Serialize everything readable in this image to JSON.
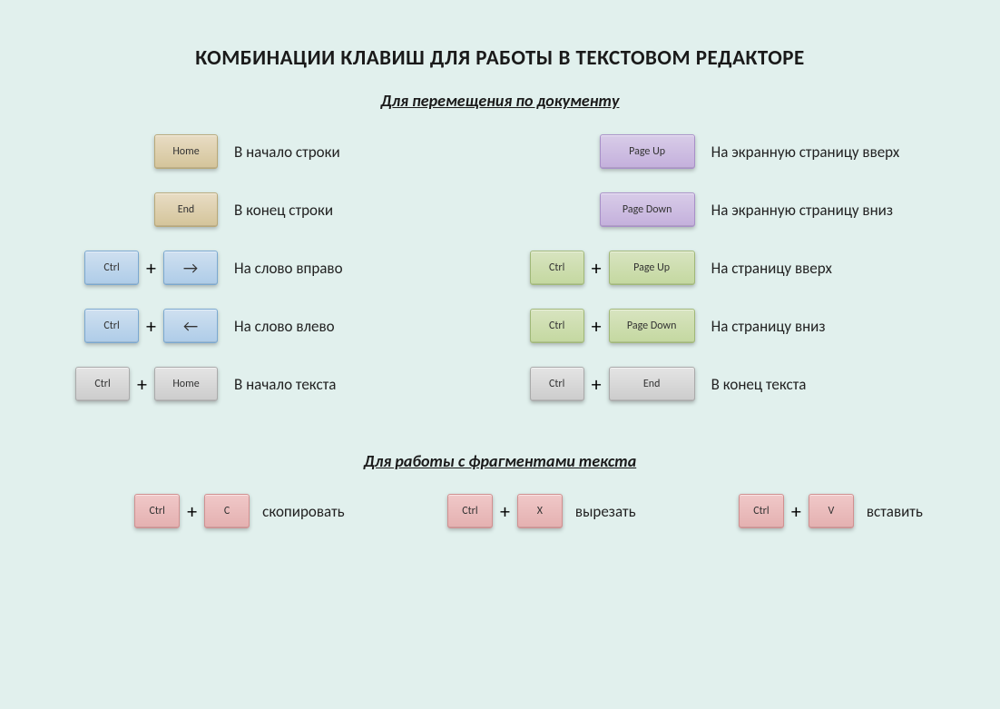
{
  "title": "КОМБИНАЦИИ КЛАВИШ ДЛЯ РАБОТЫ В ТЕКСТОВОМ РЕДАКТОРЕ",
  "section1": {
    "subtitle": "Для перемещения по документу",
    "left": [
      {
        "keys": [
          {
            "label": "Home",
            "cls": "k-tan w-normal"
          }
        ],
        "desc": "В начало строки"
      },
      {
        "keys": [
          {
            "label": "End",
            "cls": "k-tan w-normal"
          }
        ],
        "desc": "В конец строки"
      },
      {
        "keys": [
          {
            "label": "Ctrl",
            "cls": "k-blue w-med"
          },
          {
            "label": "→",
            "cls": "k-blue w-med arrow"
          }
        ],
        "desc": "На слово вправо"
      },
      {
        "keys": [
          {
            "label": "Ctrl",
            "cls": "k-blue w-med"
          },
          {
            "label": "←",
            "cls": "k-blue w-med arrow"
          }
        ],
        "desc": "На слово влево"
      },
      {
        "keys": [
          {
            "label": "Ctrl",
            "cls": "k-gray w-med"
          },
          {
            "label": "Home",
            "cls": "k-gray w-normal"
          }
        ],
        "desc": "В начало текста"
      }
    ],
    "right": [
      {
        "keys": [
          {
            "label": "Page Up",
            "cls": "k-purple w-xwide"
          }
        ],
        "desc": "На экранную страницу вверх"
      },
      {
        "keys": [
          {
            "label": "Page Down",
            "cls": "k-purple w-xwide"
          }
        ],
        "desc": "На экранную страницу вниз"
      },
      {
        "keys": [
          {
            "label": "Ctrl",
            "cls": "k-green w-med"
          },
          {
            "label": "Page Up",
            "cls": "k-green w-wide"
          }
        ],
        "desc": "На страницу вверх"
      },
      {
        "keys": [
          {
            "label": "Ctrl",
            "cls": "k-green w-med"
          },
          {
            "label": "Page Down",
            "cls": "k-green w-wide"
          }
        ],
        "desc": "На страницу вниз"
      },
      {
        "keys": [
          {
            "label": "Ctrl",
            "cls": "k-gray w-med"
          },
          {
            "label": "End",
            "cls": "k-gray w-wide"
          }
        ],
        "desc": "В конец текста"
      }
    ]
  },
  "section2": {
    "subtitle": "Для работы с фрагментами текста",
    "items": [
      {
        "keys": [
          {
            "label": "Ctrl",
            "cls": "k-pink w-small"
          },
          {
            "label": "C",
            "cls": "k-pink w-small"
          }
        ],
        "desc": "скопировать"
      },
      {
        "keys": [
          {
            "label": "Ctrl",
            "cls": "k-pink w-small"
          },
          {
            "label": "X",
            "cls": "k-pink w-small"
          }
        ],
        "desc": "вырезать"
      },
      {
        "keys": [
          {
            "label": "Ctrl",
            "cls": "k-pink w-small"
          },
          {
            "label": "V",
            "cls": "k-pink w-small"
          }
        ],
        "desc": "вставить"
      }
    ]
  },
  "styling": {
    "background_color": "#e1f0ed",
    "title_fontsize": 23,
    "subtitle_fontsize": 18,
    "desc_fontsize": 17,
    "key_fontsize": 12,
    "colors": {
      "tan": "#d4c49a",
      "blue": "#aecce8",
      "purple": "#c4b0dc",
      "green": "#c4d8a0",
      "gray": "#cccccc",
      "pink": "#e4b0b0"
    }
  }
}
